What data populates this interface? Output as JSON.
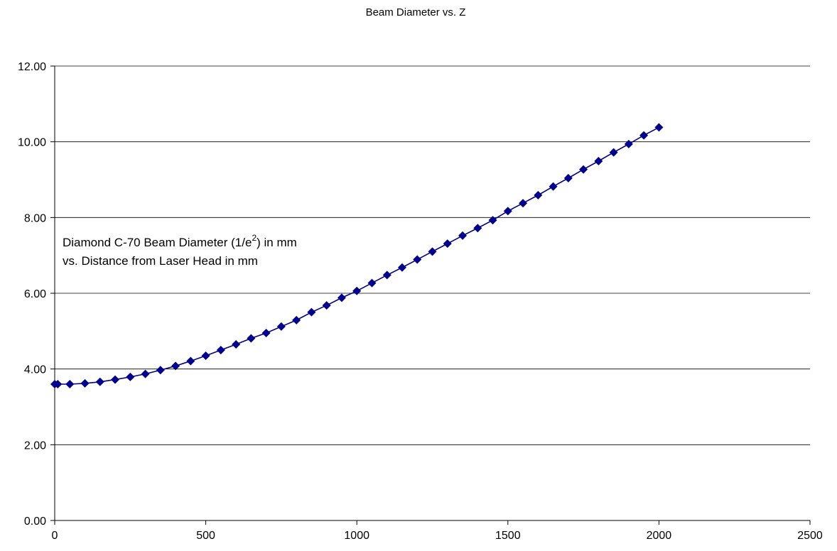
{
  "chart_data": {
    "type": "scatter",
    "title": "Beam Diameter vs. Z",
    "xlabel": "",
    "ylabel": "",
    "xlim": [
      0,
      2500
    ],
    "ylim": [
      0,
      12
    ],
    "x_ticks": [
      "0",
      "500",
      "1000",
      "1500",
      "2000",
      "2500"
    ],
    "y_ticks": [
      "0.00",
      "2.00",
      "4.00",
      "6.00",
      "8.00",
      "10.00",
      "12.00"
    ],
    "grid": "horizontal",
    "legend": "none",
    "annotation": {
      "line1_before_sup": "Diamond C-70 Beam Diameter (1/e",
      "line1_sup": "2",
      "line1_after_sup": ") in mm",
      "line2": "vs. Distance from Laser Head in mm"
    },
    "series": [
      {
        "color": "#00008B",
        "marker": "diamond",
        "line": "smoothed",
        "points": [
          [
            0,
            3.6
          ],
          [
            10,
            3.6
          ],
          [
            50,
            3.6
          ],
          [
            100,
            3.62
          ],
          [
            150,
            3.66
          ],
          [
            200,
            3.72
          ],
          [
            250,
            3.79
          ],
          [
            300,
            3.87
          ],
          [
            350,
            3.97
          ],
          [
            400,
            4.08
          ],
          [
            450,
            4.21
          ],
          [
            500,
            4.35
          ],
          [
            550,
            4.5
          ],
          [
            600,
            4.65
          ],
          [
            650,
            4.81
          ],
          [
            700,
            4.95
          ],
          [
            750,
            5.12
          ],
          [
            800,
            5.29
          ],
          [
            850,
            5.5
          ],
          [
            900,
            5.68
          ],
          [
            950,
            5.88
          ],
          [
            1000,
            6.06
          ],
          [
            1050,
            6.27
          ],
          [
            1100,
            6.48
          ],
          [
            1150,
            6.68
          ],
          [
            1200,
            6.89
          ],
          [
            1250,
            7.1
          ],
          [
            1300,
            7.31
          ],
          [
            1350,
            7.52
          ],
          [
            1400,
            7.72
          ],
          [
            1450,
            7.93
          ],
          [
            1500,
            8.17
          ],
          [
            1550,
            8.38
          ],
          [
            1600,
            8.59
          ],
          [
            1650,
            8.82
          ],
          [
            1700,
            9.04
          ],
          [
            1750,
            9.27
          ],
          [
            1800,
            9.49
          ],
          [
            1850,
            9.72
          ],
          [
            1900,
            9.94
          ],
          [
            1950,
            10.17
          ],
          [
            2000,
            10.38
          ]
        ]
      }
    ]
  }
}
